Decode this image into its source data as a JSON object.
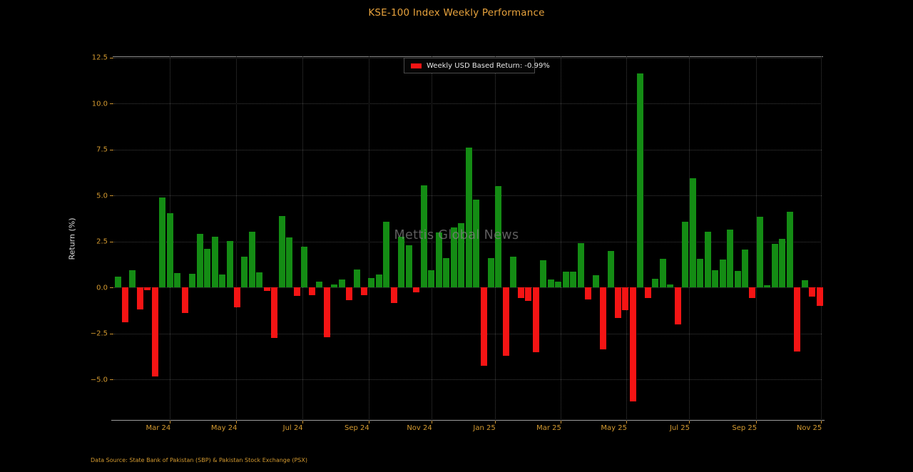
{
  "title": "KSE-100 Index Weekly Performance",
  "y_axis_label": "Return (%)",
  "watermark": "Mettis Global News",
  "footer": "Data Source: State Bank of Pakistan (SBP) & Pakistan Stock Exchange (PSX)",
  "legend": {
    "label": "Weekly USD Based Return: -0.99%",
    "swatch_color": "#f51414"
  },
  "colors": {
    "background": "#000000",
    "title": "#e8a33d",
    "tick_labels": "#d49a30",
    "positive_bar": "#148c14",
    "negative_bar": "#f51414",
    "grid": "#3c3c3c",
    "watermark": "#828282"
  },
  "chart_data": {
    "type": "bar",
    "title": "KSE-100 Index Weekly Performance",
    "xlabel": "",
    "ylabel": "Return (%)",
    "ylim": [
      -7.24,
      12.57
    ],
    "grid": true,
    "legend_position": "upper center",
    "legend_entries": [
      "Weekly USD Based Return: -0.99%"
    ],
    "series_name": "Weekly USD Based Return",
    "last_value_pct": -0.99,
    "values": [
      0.6,
      -1.9,
      0.95,
      -1.2,
      -0.15,
      -4.85,
      4.9,
      4.05,
      0.78,
      -1.4,
      0.75,
      2.9,
      2.1,
      2.77,
      0.69,
      2.54,
      -1.06,
      1.68,
      3.03,
      0.84,
      -0.19,
      -2.76,
      3.87,
      2.73,
      -0.45,
      2.22,
      -0.43,
      0.32,
      -2.7,
      0.18,
      0.42,
      -0.68,
      0.97,
      -0.42,
      0.52,
      0.69,
      3.57,
      -0.86,
      2.77,
      2.3,
      -0.26,
      5.54,
      0.93,
      2.99,
      1.61,
      3.25,
      3.48,
      7.6,
      4.79,
      -4.24,
      1.61,
      5.51,
      -3.71,
      1.68,
      -0.58,
      -0.71,
      -3.52,
      1.47,
      0.45,
      0.31,
      0.86,
      0.86,
      2.43,
      -0.65,
      0.67,
      -3.36,
      1.98,
      -1.65,
      -1.25,
      -6.2,
      11.65,
      -0.58,
      0.47,
      1.55,
      0.15,
      -2.0,
      3.58,
      5.95,
      1.57,
      3.02,
      0.93,
      1.54,
      3.15,
      0.9,
      2.08,
      -0.58,
      3.83,
      0.14,
      2.37,
      2.66,
      4.12,
      -3.47,
      0.39,
      -0.51,
      -0.99
    ],
    "y_ticks": {
      "values": [
        12.5,
        10.0,
        7.5,
        5.0,
        2.5,
        0.0,
        -2.5,
        -5.0
      ],
      "labels": [
        "12.5",
        "10.0",
        "7.5",
        "5.0",
        "2.5",
        "0.0",
        "−2.5",
        "−5.0"
      ]
    },
    "x_ticks": {
      "labels": [
        "Mar 24",
        "May 24",
        "Jul 24",
        "Sep 24",
        "Nov 24",
        "Jan 25",
        "Mar 25",
        "May 25",
        "Jul 25",
        "Sep 25",
        "Nov 25"
      ],
      "week_indices": [
        7,
        15.9,
        24.7,
        33.6,
        42,
        50.5,
        59.3,
        68.1,
        76.5,
        85.5,
        94.2
      ]
    }
  }
}
